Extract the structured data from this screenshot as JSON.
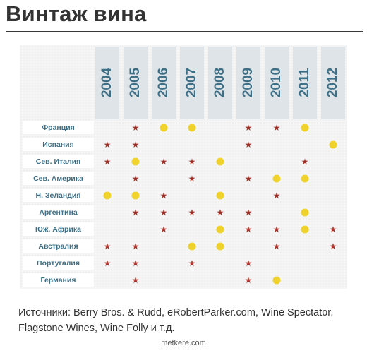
{
  "title": "Винтаж вина",
  "years": [
    "2004",
    "2005",
    "2006",
    "2007",
    "2008",
    "2009",
    "2010",
    "2011",
    "2012"
  ],
  "legend_colors": {
    "star": "#a8362c",
    "dot": "#f0d22c",
    "header": "#3d6f86"
  },
  "rows": [
    {
      "country": "Франция",
      "marks": [
        "",
        "star",
        "dot",
        "dot",
        "",
        "star",
        "star",
        "dot",
        ""
      ]
    },
    {
      "country": "Испания",
      "marks": [
        "star",
        "star",
        "",
        "",
        "",
        "star",
        "",
        "",
        "dot"
      ]
    },
    {
      "country": "Сев. Италия",
      "marks": [
        "star",
        "dot",
        "star",
        "star",
        "dot",
        "",
        "",
        "star",
        ""
      ]
    },
    {
      "country": "Сев. Америка",
      "marks": [
        "",
        "star",
        "",
        "star",
        "",
        "star",
        "dot",
        "dot",
        ""
      ]
    },
    {
      "country": "Н. Зеландия",
      "marks": [
        "dot",
        "dot",
        "star",
        "",
        "dot",
        "",
        "star",
        "",
        ""
      ]
    },
    {
      "country": "Аргентина",
      "marks": [
        "",
        "star",
        "star",
        "star",
        "star",
        "star",
        "",
        "dot",
        ""
      ]
    },
    {
      "country": "Юж. Африка",
      "marks": [
        "",
        "",
        "star",
        "",
        "dot",
        "star",
        "star",
        "dot",
        "star"
      ]
    },
    {
      "country": "Австралия",
      "marks": [
        "star",
        "star",
        "",
        "dot",
        "dot",
        "",
        "star",
        "",
        "star"
      ]
    },
    {
      "country": "Португалия",
      "marks": [
        "star",
        "star",
        "",
        "star",
        "",
        "star",
        "",
        "",
        ""
      ]
    },
    {
      "country": "Германия",
      "marks": [
        "",
        "star",
        "",
        "",
        "",
        "star",
        "dot",
        "",
        ""
      ]
    }
  ],
  "sources": "Источники: Berry Bros. & Rudd, eRobertParker.com, Wine Spectator, Flagstone Wines, Wine Folly и т.д.",
  "footer": "metkere.com"
}
